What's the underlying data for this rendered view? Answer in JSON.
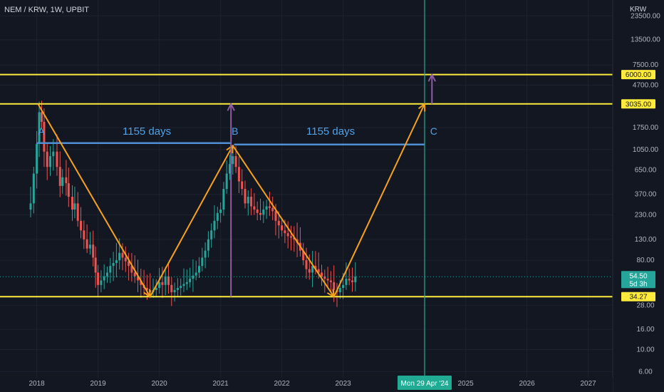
{
  "header": {
    "title": "NEM / KRW, 1W, UPBIT",
    "currency": "KRW"
  },
  "colors": {
    "background": "#131722",
    "up": "#26a69a",
    "down": "#ef5350",
    "level_line": "#ffeb3b",
    "projection": "#f7a21b",
    "cycle_arrow": "#8e5ea2",
    "measure_line": "#4f8fd6",
    "date_line": "#22ab94"
  },
  "chart_data": {
    "type": "candlestick",
    "title": "NEM / KRW, 1W, UPBIT",
    "y_scale": "log",
    "ylim": [
      5.2,
      34000
    ],
    "xlim": [
      2017.4,
      2027.4
    ],
    "y_ticks": [
      "23500.00",
      "13500.00",
      "7500.00",
      "4700.00",
      "1750.00",
      "1050.00",
      "650.00",
      "370.00",
      "230.00",
      "130.00",
      "80.00",
      "28.00",
      "16.00",
      "10.00",
      "6.00"
    ],
    "x_ticks": [
      "2018",
      "2019",
      "2020",
      "2021",
      "2022",
      "2023",
      "2025",
      "2026",
      "2027"
    ],
    "levels": [
      {
        "value": 6000,
        "label": "6000.00"
      },
      {
        "value": 3035,
        "label": "3035.00"
      },
      {
        "value": 34.27,
        "label": "34.27"
      }
    ],
    "last_price": {
      "value": 54.5,
      "label": "54.50",
      "countdown": "5d 3h"
    },
    "date_marker": {
      "x": 2024.33,
      "label": "Mon 29 Apr '24"
    },
    "annotations": {
      "labels": [
        {
          "text": "A",
          "x": 2018.02,
          "y": 1480
        },
        {
          "text": "B",
          "x": 2021.18,
          "y": 1480
        },
        {
          "text": "C",
          "x": 2024.42,
          "y": 1480
        }
      ],
      "intervals": [
        {
          "text": "1155 days",
          "x": 2019.4,
          "y": 1480
        },
        {
          "text": "1155 days",
          "x": 2022.4,
          "y": 1480
        }
      ],
      "measure_segments": [
        {
          "x1": 2018.0,
          "x2": 2021.17,
          "y": 1220
        },
        {
          "x1": 2021.22,
          "x2": 2024.33,
          "y": 1180
        }
      ],
      "projection_path": [
        [
          2018.02,
          3035
        ],
        [
          2019.85,
          34.27
        ],
        [
          2021.2,
          1150
        ],
        [
          2022.85,
          34.27
        ],
        [
          2024.33,
          3035
        ]
      ],
      "cycle_arrows": [
        {
          "x": 2021.17,
          "y_from": 34.27,
          "y_to": 3035
        },
        {
          "x": 2024.45,
          "y_from": 3035,
          "y_to": 6000
        }
      ]
    },
    "series": [
      {
        "name": "price",
        "points": [
          [
            2017.85,
            260
          ],
          [
            2017.9,
            300
          ],
          [
            2017.95,
            600
          ],
          [
            2018.0,
            1200
          ],
          [
            2018.04,
            2500
          ],
          [
            2018.08,
            2000
          ],
          [
            2018.12,
            1000
          ],
          [
            2018.17,
            700
          ],
          [
            2018.22,
            900
          ],
          [
            2018.27,
            1000
          ],
          [
            2018.33,
            700
          ],
          [
            2018.38,
            450
          ],
          [
            2018.42,
            550
          ],
          [
            2018.48,
            480
          ],
          [
            2018.52,
            350
          ],
          [
            2018.58,
            260
          ],
          [
            2018.62,
            300
          ],
          [
            2018.67,
            200
          ],
          [
            2018.72,
            160
          ],
          [
            2018.77,
            130
          ],
          [
            2018.82,
            105
          ],
          [
            2018.87,
            115
          ],
          [
            2018.92,
            85
          ],
          [
            2018.96,
            60
          ],
          [
            2019.0,
            45
          ],
          [
            2019.05,
            50
          ],
          [
            2019.1,
            55
          ],
          [
            2019.15,
            60
          ],
          [
            2019.2,
            70
          ],
          [
            2019.25,
            75
          ],
          [
            2019.3,
            80
          ],
          [
            2019.35,
            95
          ],
          [
            2019.4,
            85
          ],
          [
            2019.45,
            78
          ],
          [
            2019.5,
            70
          ],
          [
            2019.55,
            60
          ],
          [
            2019.6,
            55
          ],
          [
            2019.65,
            50
          ],
          [
            2019.7,
            45
          ],
          [
            2019.75,
            42
          ],
          [
            2019.8,
            40
          ],
          [
            2019.85,
            38
          ],
          [
            2019.9,
            40
          ],
          [
            2019.95,
            42
          ],
          [
            2020.0,
            48
          ],
          [
            2020.05,
            45
          ],
          [
            2020.1,
            55
          ],
          [
            2020.15,
            45
          ],
          [
            2020.2,
            38
          ],
          [
            2020.25,
            40
          ],
          [
            2020.3,
            42
          ],
          [
            2020.35,
            44
          ],
          [
            2020.4,
            46
          ],
          [
            2020.45,
            48
          ],
          [
            2020.5,
            52
          ],
          [
            2020.55,
            56
          ],
          [
            2020.6,
            60
          ],
          [
            2020.65,
            70
          ],
          [
            2020.7,
            85
          ],
          [
            2020.75,
            100
          ],
          [
            2020.8,
            130
          ],
          [
            2020.85,
            160
          ],
          [
            2020.9,
            200
          ],
          [
            2020.95,
            240
          ],
          [
            2021.0,
            260
          ],
          [
            2021.05,
            420
          ],
          [
            2021.1,
            600
          ],
          [
            2021.15,
            750
          ],
          [
            2021.2,
            900
          ],
          [
            2021.25,
            700
          ],
          [
            2021.3,
            500
          ],
          [
            2021.35,
            420
          ],
          [
            2021.4,
            300
          ],
          [
            2021.45,
            350
          ],
          [
            2021.5,
            280
          ],
          [
            2021.55,
            260
          ],
          [
            2021.6,
            240
          ],
          [
            2021.65,
            230
          ],
          [
            2021.7,
            260
          ],
          [
            2021.75,
            280
          ],
          [
            2021.8,
            270
          ],
          [
            2021.85,
            250
          ],
          [
            2021.9,
            200
          ],
          [
            2021.95,
            180
          ],
          [
            2022.0,
            160
          ],
          [
            2022.05,
            150
          ],
          [
            2022.1,
            140
          ],
          [
            2022.15,
            135
          ],
          [
            2022.2,
            130
          ],
          [
            2022.25,
            120
          ],
          [
            2022.3,
            100
          ],
          [
            2022.35,
            80
          ],
          [
            2022.4,
            65
          ],
          [
            2022.45,
            60
          ],
          [
            2022.5,
            70
          ],
          [
            2022.55,
            65
          ],
          [
            2022.6,
            60
          ],
          [
            2022.65,
            55
          ],
          [
            2022.7,
            52
          ],
          [
            2022.75,
            50
          ],
          [
            2022.8,
            48
          ],
          [
            2022.85,
            40
          ],
          [
            2022.9,
            38
          ],
          [
            2022.95,
            42
          ],
          [
            2023.0,
            45
          ],
          [
            2023.05,
            52
          ],
          [
            2023.1,
            50
          ],
          [
            2023.15,
            48
          ],
          [
            2023.2,
            54.5
          ]
        ]
      }
    ]
  }
}
